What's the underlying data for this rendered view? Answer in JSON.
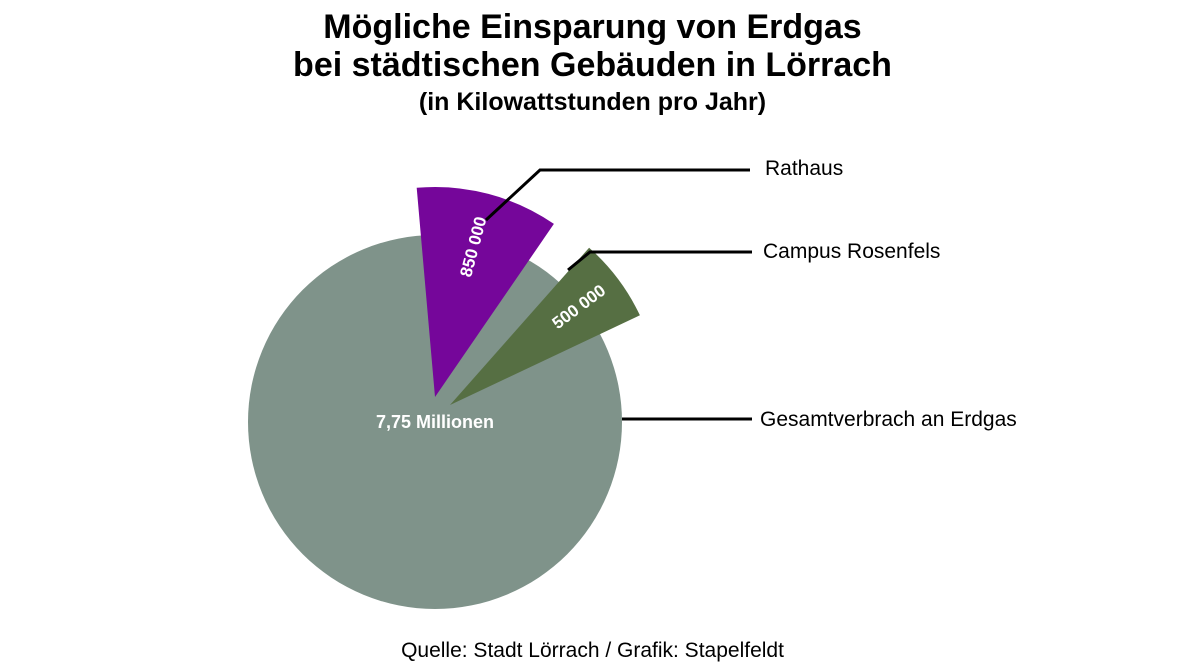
{
  "title": {
    "line1": "Mögliche Einsparung von Erdgas",
    "line2": "bei städtischen Gebäuden in Lörrach"
  },
  "subtitle": "(in Kilowattstunden pro Jahr)",
  "source": "Quelle: Stadt Lörrach / Grafik: Stapelfeldt",
  "chart_data": {
    "type": "pie",
    "title": "Mögliche Einsparung von Erdgas bei städtischen Gebäuden in Lörrach",
    "subtitle": "(in Kilowattstunden pro Jahr)",
    "unit": "Kilowattstunden pro Jahr",
    "total": {
      "name": "Gesamtverbrach an Erdgas",
      "value": 7750000,
      "value_label": "7,75 Millionen",
      "color": "#7f938a"
    },
    "slices": [
      {
        "name": "Rathaus",
        "value": 850000,
        "value_label": "850 000",
        "color": "#75069a",
        "exploded": true
      },
      {
        "name": "Campus Rosenfels",
        "value": 500000,
        "value_label": "500 000",
        "color": "#566f43",
        "exploded": true
      }
    ],
    "legend_placement": "right"
  }
}
